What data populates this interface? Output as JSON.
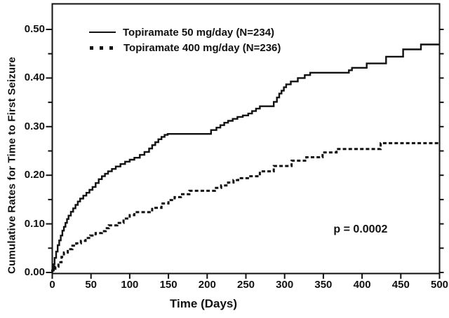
{
  "figure": {
    "background_color": "#ffffff",
    "line_color": "#111111"
  },
  "chart_data": {
    "type": "line",
    "subtype": "kaplan-meier-cumulative-step",
    "title": "",
    "xlabel": "Time (Days)",
    "ylabel": "Cumulative Rates for Time to First Seizure",
    "xlim": [
      0,
      500
    ],
    "ylim": [
      0,
      0.55
    ],
    "x_ticks": [
      0,
      50,
      100,
      150,
      200,
      250,
      300,
      350,
      400,
      450,
      500
    ],
    "y_ticks": [
      0.0,
      0.1,
      0.2,
      0.3,
      0.4,
      0.5
    ],
    "y_minor_step": 0.05,
    "grid": false,
    "legend_position": "top-left-inside",
    "annotations": [
      {
        "text": "p = 0.0002",
        "t": 398,
        "v": 0.088
      }
    ],
    "series": [
      {
        "name": "Topiramate 50 mg/day (N=234)",
        "style": "solid",
        "color": "#111111",
        "points": [
          [
            0,
            0.004
          ],
          [
            2,
            0.017
          ],
          [
            3,
            0.03
          ],
          [
            5,
            0.043
          ],
          [
            7,
            0.056
          ],
          [
            9,
            0.066
          ],
          [
            11,
            0.076
          ],
          [
            13,
            0.086
          ],
          [
            15,
            0.094
          ],
          [
            17,
            0.102
          ],
          [
            19,
            0.11
          ],
          [
            21,
            0.117
          ],
          [
            24,
            0.125
          ],
          [
            27,
            0.132
          ],
          [
            30,
            0.139
          ],
          [
            33,
            0.146
          ],
          [
            36,
            0.152
          ],
          [
            40,
            0.158
          ],
          [
            44,
            0.164
          ],
          [
            48,
            0.17
          ],
          [
            52,
            0.176
          ],
          [
            56,
            0.184
          ],
          [
            60,
            0.192
          ],
          [
            64,
            0.198
          ],
          [
            68,
            0.203
          ],
          [
            72,
            0.208
          ],
          [
            77,
            0.213
          ],
          [
            82,
            0.218
          ],
          [
            88,
            0.223
          ],
          [
            94,
            0.228
          ],
          [
            100,
            0.232
          ],
          [
            106,
            0.236
          ],
          [
            113,
            0.242
          ],
          [
            119,
            0.248
          ],
          [
            125,
            0.255
          ],
          [
            129,
            0.262
          ],
          [
            133,
            0.268
          ],
          [
            137,
            0.274
          ],
          [
            141,
            0.279
          ],
          [
            145,
            0.283
          ],
          [
            149,
            0.285
          ],
          [
            205,
            0.293
          ],
          [
            212,
            0.298
          ],
          [
            217,
            0.303
          ],
          [
            222,
            0.308
          ],
          [
            227,
            0.312
          ],
          [
            233,
            0.316
          ],
          [
            239,
            0.32
          ],
          [
            246,
            0.323
          ],
          [
            253,
            0.327
          ],
          [
            258,
            0.332
          ],
          [
            263,
            0.337
          ],
          [
            268,
            0.342
          ],
          [
            286,
            0.351
          ],
          [
            290,
            0.36
          ],
          [
            293,
            0.368
          ],
          [
            296,
            0.374
          ],
          [
            299,
            0.381
          ],
          [
            302,
            0.387
          ],
          [
            308,
            0.393
          ],
          [
            317,
            0.4
          ],
          [
            326,
            0.406
          ],
          [
            333,
            0.411
          ],
          [
            383,
            0.416
          ],
          [
            387,
            0.421
          ],
          [
            406,
            0.43
          ],
          [
            431,
            0.444
          ],
          [
            453,
            0.459
          ],
          [
            476,
            0.469
          ],
          [
            500,
            0.469
          ]
        ]
      },
      {
        "name": "Topiramate 400 mg/day (N=236)",
        "style": "dotted",
        "color": "#111111",
        "points": [
          [
            0,
            0.004
          ],
          [
            4,
            0.012
          ],
          [
            8,
            0.021
          ],
          [
            12,
            0.032
          ],
          [
            15,
            0.041
          ],
          [
            20,
            0.048
          ],
          [
            26,
            0.055
          ],
          [
            31,
            0.06
          ],
          [
            37,
            0.065
          ],
          [
            43,
            0.071
          ],
          [
            49,
            0.076
          ],
          [
            56,
            0.081
          ],
          [
            64,
            0.085
          ],
          [
            69,
            0.091
          ],
          [
            73,
            0.097
          ],
          [
            84,
            0.102
          ],
          [
            92,
            0.111
          ],
          [
            100,
            0.118
          ],
          [
            106,
            0.124
          ],
          [
            129,
            0.133
          ],
          [
            141,
            0.142
          ],
          [
            150,
            0.149
          ],
          [
            158,
            0.155
          ],
          [
            166,
            0.161
          ],
          [
            177,
            0.168
          ],
          [
            210,
            0.174
          ],
          [
            218,
            0.179
          ],
          [
            227,
            0.185
          ],
          [
            234,
            0.19
          ],
          [
            240,
            0.194
          ],
          [
            254,
            0.198
          ],
          [
            268,
            0.208
          ],
          [
            286,
            0.219
          ],
          [
            309,
            0.23
          ],
          [
            328,
            0.237
          ],
          [
            349,
            0.247
          ],
          [
            367,
            0.254
          ],
          [
            424,
            0.266
          ],
          [
            500,
            0.266
          ]
        ]
      }
    ]
  }
}
